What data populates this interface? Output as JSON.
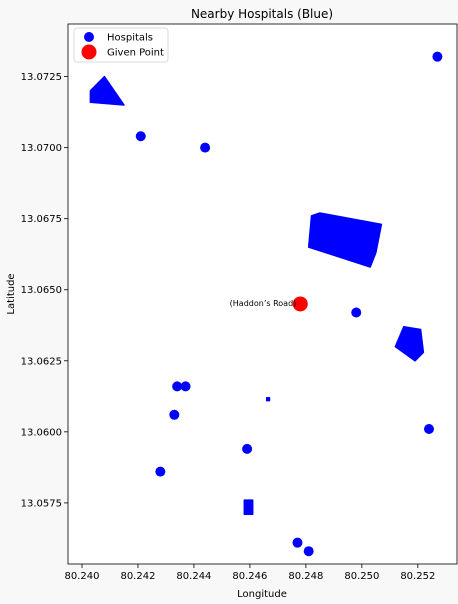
{
  "chart_data": {
    "type": "scatter",
    "title": "Nearby Hospitals (Blue)",
    "xlabel": "Longitude",
    "ylabel": "Latitude",
    "xlim": [
      80.2395,
      80.2534
    ],
    "ylim": [
      13.05535,
      13.07435
    ],
    "xticks": [
      80.24,
      80.242,
      80.244,
      80.246,
      80.248,
      80.25,
      80.252
    ],
    "xtick_labels": [
      "80.240",
      "80.242",
      "80.244",
      "80.246",
      "80.248",
      "80.250",
      "80.252"
    ],
    "yticks": [
      13.0575,
      13.06,
      13.0625,
      13.065,
      13.0675,
      13.07,
      13.0725
    ],
    "ytick_labels": [
      "13.0575",
      "13.0600",
      "13.0625",
      "13.0650",
      "13.0675",
      "13.0700",
      "13.0725"
    ],
    "grid": false,
    "legend_position": "top-left",
    "legend": [
      {
        "label": "Hospitals",
        "color": "#0000ff"
      },
      {
        "label": "Given Point",
        "color": "#ff0000"
      }
    ],
    "series": [
      {
        "name": "Hospitals",
        "color": "#0000ff",
        "points": [
          {
            "x": 80.2527,
            "y": 13.0732
          },
          {
            "x": 80.2421,
            "y": 13.0704
          },
          {
            "x": 80.2444,
            "y": 13.07
          },
          {
            "x": 80.2498,
            "y": 13.0642
          },
          {
            "x": 80.2434,
            "y": 13.0616
          },
          {
            "x": 80.2437,
            "y": 13.0616
          },
          {
            "x": 80.2433,
            "y": 13.0606
          },
          {
            "x": 80.2524,
            "y": 13.0601
          },
          {
            "x": 80.2459,
            "y": 13.0594
          },
          {
            "x": 80.2428,
            "y": 13.0586
          },
          {
            "x": 80.2477,
            "y": 13.0561
          },
          {
            "x": 80.2481,
            "y": 13.0558
          }
        ],
        "polygons": [
          [
            [
              80.2403,
              13.0716
            ],
            [
              80.2403,
              13.072
            ],
            [
              80.2408,
              13.0725
            ],
            [
              80.2415,
              13.0715
            ]
          ],
          [
            [
              80.2481,
              13.0665
            ],
            [
              80.2482,
              13.0676
            ],
            [
              80.2485,
              13.0677
            ],
            [
              80.2507,
              13.0673
            ],
            [
              80.2505,
              13.0663
            ],
            [
              80.2503,
              13.0658
            ]
          ],
          [
            [
              80.2512,
              13.063
            ],
            [
              80.2515,
              13.0637
            ],
            [
              80.2521,
              13.0636
            ],
            [
              80.2522,
              13.0628
            ],
            [
              80.2519,
              13.0625
            ]
          ],
          [
            [
              80.2458,
              13.0571
            ],
            [
              80.2458,
              13.0576
            ],
            [
              80.2461,
              13.0576
            ],
            [
              80.2461,
              13.0571
            ]
          ],
          [
            [
              80.2466,
              13.0611
            ],
            [
              80.2466,
              13.0612
            ],
            [
              80.2467,
              13.0612
            ],
            [
              80.2467,
              13.0611
            ]
          ]
        ]
      },
      {
        "name": "Given Point",
        "color": "#ff0000",
        "points": [
          {
            "x": 80.2478,
            "y": 13.0645
          }
        ]
      }
    ],
    "annotations": [
      {
        "text": "(Haddon’s Road)",
        "x": 80.2478,
        "y": 13.0645
      }
    ]
  }
}
